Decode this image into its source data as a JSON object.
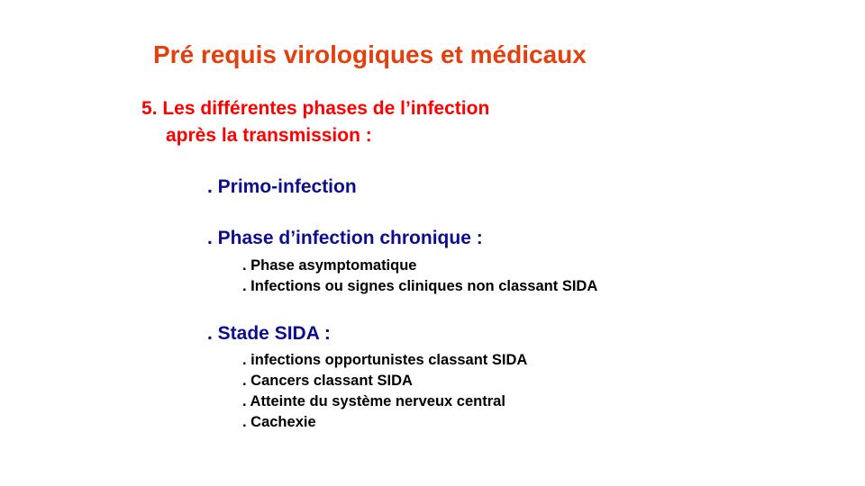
{
  "slide": {
    "title": "Pré requis virologiques et médicaux",
    "section": {
      "line1": "5. Les différentes phases de l’infection",
      "line2": "après la transmission :"
    },
    "phases": [
      {
        "label": ". Primo-infection",
        "items": []
      },
      {
        "label": ". Phase d’infection chronique :",
        "items": [
          ". Phase asymptomatique",
          ". Infections ou signes cliniques non classant SIDA"
        ]
      },
      {
        "label": ". Stade SIDA :",
        "items": [
          ". infections opportunistes classant SIDA",
          ". Cancers classant SIDA",
          ". Atteinte du système nerveux central",
          ". Cachexie"
        ]
      }
    ],
    "colors": {
      "title": "#e2400f",
      "section": "#ff0000",
      "phase": "#0d0d8f",
      "body": "#000000"
    }
  }
}
